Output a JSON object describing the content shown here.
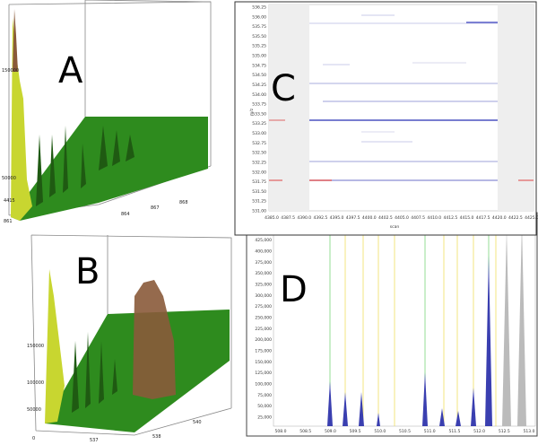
{
  "panels": {
    "a": {
      "label": "A",
      "ticks": [
        "150000",
        "50000",
        "4415",
        "861",
        "864",
        "867",
        "868"
      ]
    },
    "b": {
      "label": "B",
      "ticks": [
        "150000",
        "100000",
        "50000",
        "0",
        "537",
        "538",
        "540"
      ]
    },
    "c": {
      "label": "C",
      "y_axis_label": "m/z",
      "x_axis_label": "scan",
      "yticks": [
        "536.25",
        "536.00",
        "535.75",
        "535.50",
        "535.25",
        "535.00",
        "534.75",
        "534.50",
        "534.25",
        "534.00",
        "533.75",
        "533.50",
        "533.25",
        "533.00",
        "532.75",
        "532.50",
        "532.25",
        "532.00",
        "531.75",
        "531.50",
        "531.25",
        "531.00"
      ],
      "xticks": [
        "4385.0",
        "4387.5",
        "4390.0",
        "4392.5",
        "4395.0",
        "4397.5",
        "4400.0",
        "4402.5",
        "4405.0",
        "4407.5",
        "4410.0",
        "4412.5",
        "4415.0",
        "4417.5",
        "4420.0",
        "4422.5",
        "4425.0"
      ]
    },
    "d": {
      "label": "D",
      "yticks": [
        "475,000",
        "450,000",
        "425,000",
        "400,000",
        "375,000",
        "350,000",
        "325,000",
        "300,000",
        "275,000",
        "250,000",
        "225,000",
        "200,000",
        "175,000",
        "150,000",
        "125,000",
        "100,000",
        "75,000",
        "50,000",
        "25,000"
      ],
      "xticks": [
        "508.0",
        "508.5",
        "509.0",
        "509.5",
        "510.0",
        "510.5",
        "511.0",
        "511.5",
        "512.0",
        "512.5",
        "513.0"
      ]
    }
  }
}
